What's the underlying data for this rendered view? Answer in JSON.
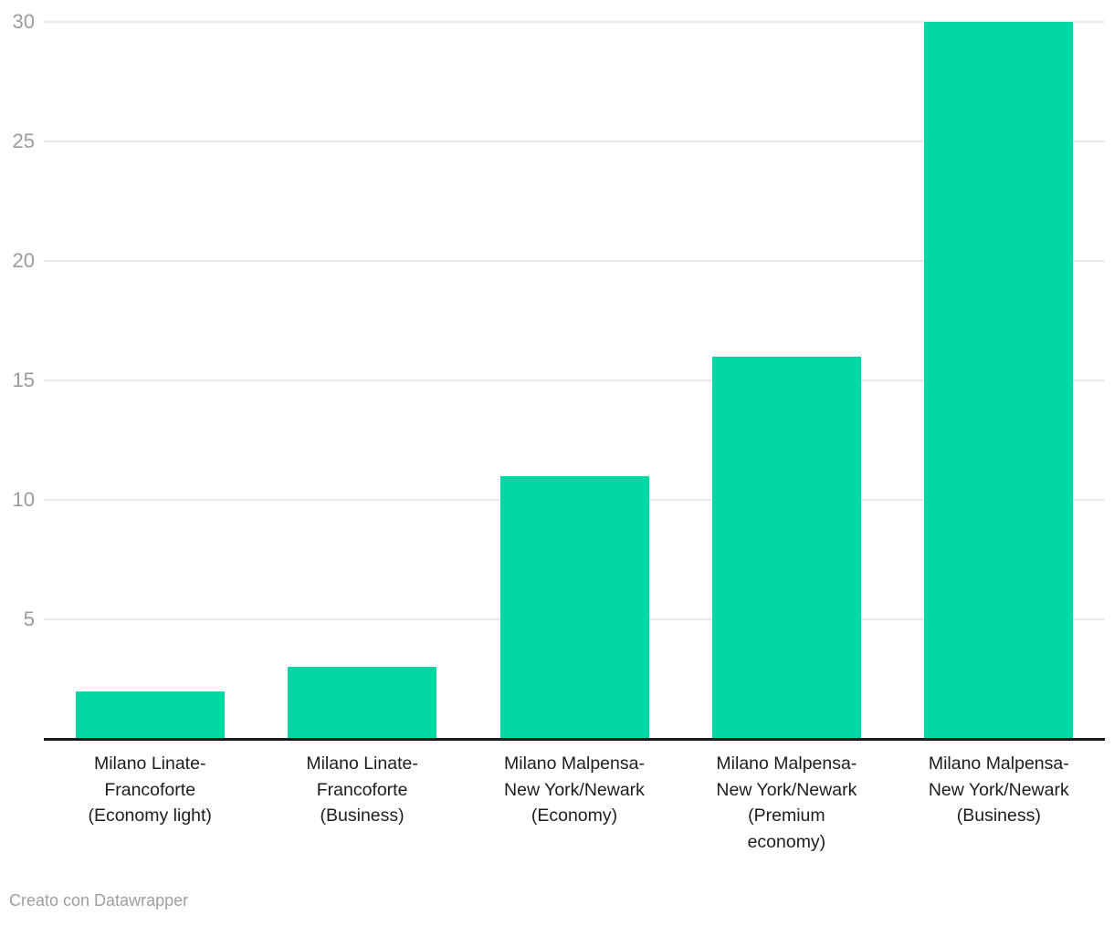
{
  "chart_data": {
    "type": "bar",
    "title": "",
    "xlabel": "",
    "ylabel": "",
    "categories": [
      "Milano Linate-\nFrancoforte\n(Economy light)",
      "Milano Linate-\nFrancoforte\n(Business)",
      "Milano Malpensa-\nNew York/Newark\n(Economy)",
      "Milano Malpensa-\nNew York/Newark\n(Premium\neconomy)",
      "Milano Malpensa-\nNew York/Newark\n(Business)"
    ],
    "values": [
      2,
      3,
      11,
      16,
      30
    ],
    "yticks": [
      5,
      10,
      15,
      20,
      25,
      30
    ],
    "ylim": [
      0,
      30
    ],
    "grid": "horizontal",
    "legend": "none"
  },
  "colors": {
    "bar": "#00d7a4",
    "gridline": "#e9e9e9",
    "axis_line": "#1a1a1a",
    "tick_label": "#9b9b9b",
    "category_label": "#1d1d1d",
    "footer_text": "#9e9e9e",
    "background": "#ffffff"
  },
  "footer": {
    "credit": "Creato con Datawrapper"
  }
}
